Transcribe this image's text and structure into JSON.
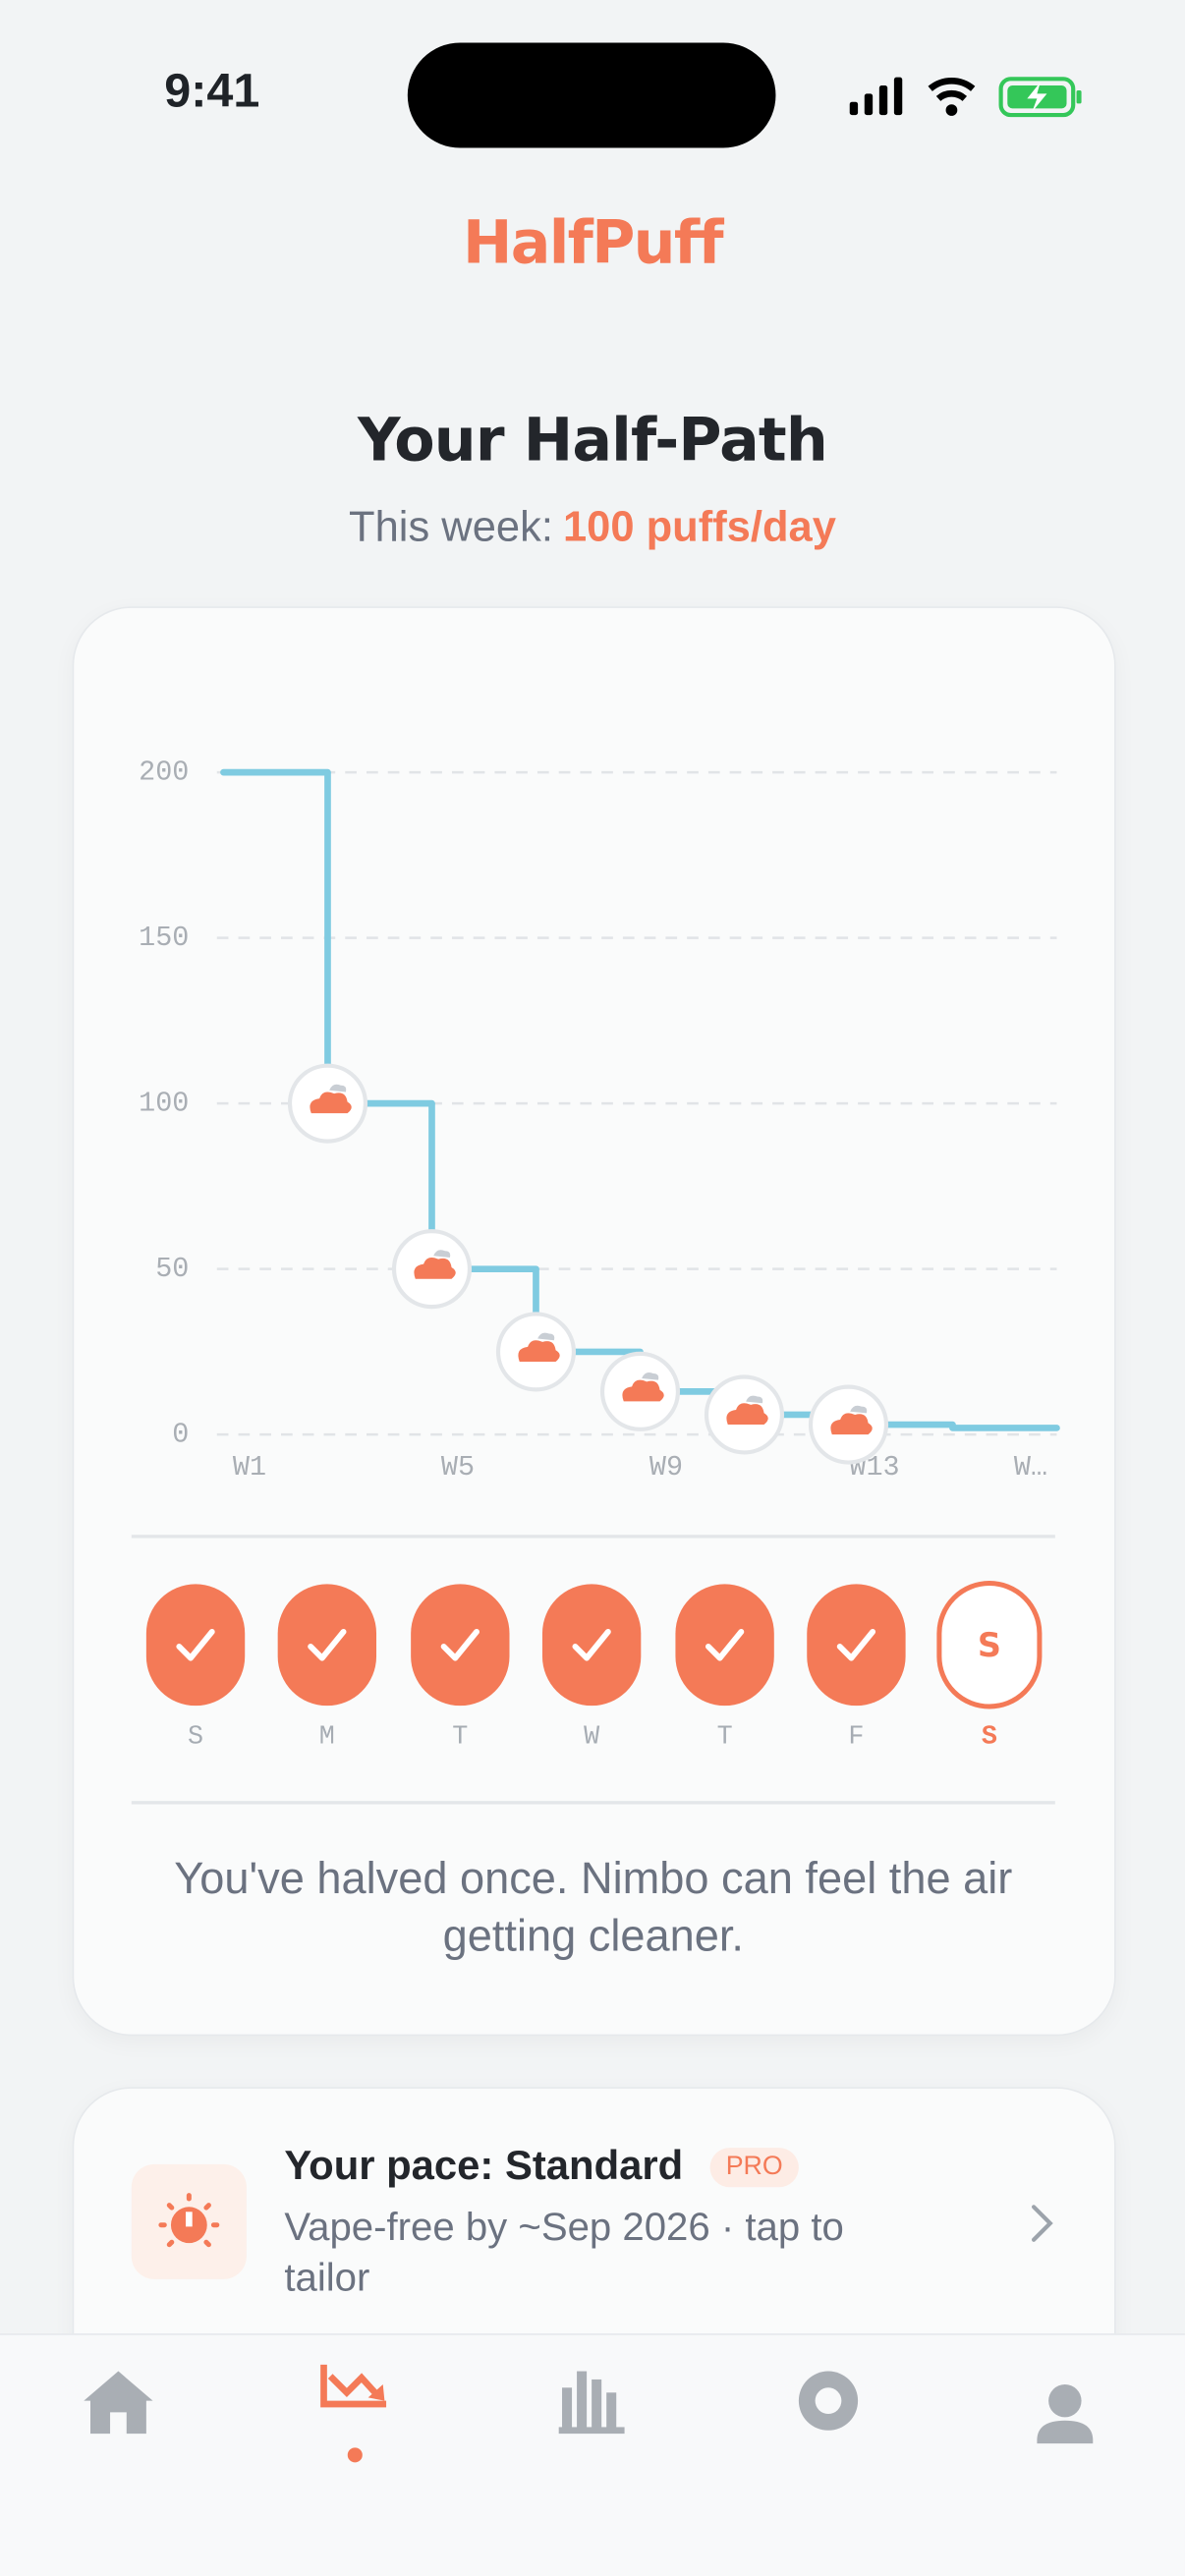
{
  "status_bar": {
    "time": "9:41"
  },
  "app": {
    "title": "HalfPuff"
  },
  "header": {
    "title": "Your Half-Path",
    "subtitle_label": "This week:",
    "subtitle_value": "100 puffs/day"
  },
  "chart_data": {
    "type": "step",
    "x": [
      0.5,
      2.5,
      4.5,
      6.5,
      8.5,
      10.5,
      12.5,
      14.5
    ],
    "series": [
      {
        "color": "#7fcbe1",
        "values": [
          200,
          100,
          50,
          25,
          13,
          6,
          3,
          2
        ]
      }
    ],
    "xlim": [
      0.5,
      16.5
    ],
    "xticks": [
      {
        "value": 1,
        "label": "W1"
      },
      {
        "value": 5,
        "label": "W5"
      },
      {
        "value": 9,
        "label": "W9"
      },
      {
        "value": 13,
        "label": "W13"
      },
      {
        "value": 16,
        "label": "W…"
      }
    ],
    "ylim": [
      0,
      200
    ],
    "yticks": [
      0,
      50,
      100,
      150,
      200
    ],
    "grid": true
  },
  "week": {
    "days": [
      {
        "label": "S",
        "status": "done"
      },
      {
        "label": "M",
        "status": "done"
      },
      {
        "label": "T",
        "status": "done"
      },
      {
        "label": "W",
        "status": "done"
      },
      {
        "label": "T",
        "status": "done"
      },
      {
        "label": "F",
        "status": "done"
      },
      {
        "label": "S",
        "status": "today"
      }
    ]
  },
  "message": "You've halved once. Nimbo can feel the air getting cleaner.",
  "pace_card": {
    "title": "Your pace: Standard",
    "badge": "PRO",
    "subtitle": "Vape-free by ~Sep 2026 · tap to tailor"
  },
  "nav": {
    "active": 1
  }
}
